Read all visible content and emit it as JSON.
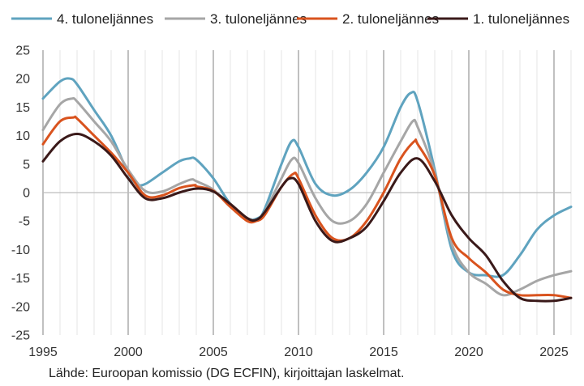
{
  "chart_data": {
    "type": "line",
    "xlim": [
      1995,
      2026
    ],
    "ylim": [
      -25,
      25
    ],
    "yticks": [
      25,
      20,
      15,
      10,
      5,
      0,
      -5,
      -10,
      -15,
      -20,
      -25
    ],
    "xticks": [
      1995,
      2000,
      2005,
      2010,
      2015,
      2020,
      2025
    ],
    "grid": {
      "vertical_major_every": 5,
      "vertical_minor_every": 1,
      "horizontal": false
    },
    "legend_position": "top",
    "series": [
      {
        "name": "4. tuloneljännes",
        "color": "#5fa3bf",
        "x": [
          1995,
          1996,
          1996.6,
          1997,
          1998,
          1999,
          2000,
          2000.5,
          2001,
          2002,
          2003,
          2003.6,
          2004,
          2005,
          2006,
          2007,
          2007.6,
          2008,
          2009,
          2009.6,
          2010,
          2011,
          2012,
          2013,
          2014,
          2015,
          2016,
          2016.6,
          2017,
          2018,
          2019,
          2020,
          2021,
          2022,
          2023,
          2024,
          2025,
          2026
        ],
        "y": [
          16.5,
          19.5,
          20,
          19,
          14.5,
          10,
          3.5,
          1.5,
          1.5,
          3.5,
          5.5,
          6,
          5.8,
          2.5,
          -2,
          -4.5,
          -4.5,
          -3,
          5,
          9,
          8,
          1.5,
          -0.5,
          0.5,
          3.5,
          8,
          15,
          17.5,
          16,
          4,
          -10,
          -14,
          -14.5,
          -14.5,
          -11,
          -6.5,
          -4,
          -2.5
        ]
      },
      {
        "name": "3. tuloneljännes",
        "color": "#a6a6a6",
        "x": [
          1995,
          1996,
          1996.7,
          1997,
          1998,
          1999,
          2000,
          2001,
          2002,
          2003,
          2003.7,
          2004,
          2005,
          2006,
          2007,
          2007.6,
          2008,
          2009,
          2009.6,
          2010,
          2011,
          2012,
          2013,
          2014,
          2015,
          2016,
          2016.7,
          2017,
          2018,
          2019,
          2020,
          2021,
          2022,
          2023,
          2024,
          2025,
          2026
        ],
        "y": [
          11,
          15.5,
          16.5,
          16,
          12.5,
          9,
          4,
          0.3,
          0.2,
          1.5,
          2.3,
          2,
          0.5,
          -2.5,
          -4.5,
          -4.8,
          -3.5,
          2.5,
          5.8,
          5.2,
          -1,
          -5,
          -5,
          -2,
          3.5,
          9,
          12.5,
          11.5,
          3.5,
          -9,
          -14,
          -16,
          -18,
          -17,
          -15.5,
          -14.5,
          -13.8
        ]
      },
      {
        "name": "2. tuloneljännes",
        "color": "#d9531e",
        "x": [
          1995,
          1996,
          1996.8,
          1997,
          1998,
          1999,
          2000,
          2001,
          2002,
          2003,
          2003.9,
          2004,
          2005,
          2006,
          2007,
          2007.5,
          2008,
          2009,
          2009.7,
          2010,
          2011,
          2012,
          2013,
          2014,
          2015,
          2016,
          2016.8,
          2017,
          2018,
          2019,
          2020,
          2021,
          2022,
          2023,
          2024,
          2025,
          2026
        ],
        "y": [
          8.5,
          12.5,
          13.2,
          13,
          10,
          7,
          3.5,
          -0.5,
          -0.5,
          0.8,
          1.3,
          1.1,
          0.3,
          -2.5,
          -5,
          -5,
          -4,
          1,
          3.3,
          2.5,
          -4,
          -8,
          -8,
          -5,
          0,
          6,
          9,
          8.5,
          3,
          -8,
          -11.5,
          -14,
          -17,
          -18,
          -18,
          -18,
          -18.5
        ]
      },
      {
        "name": "1. tuloneljännes",
        "color": "#3a1919",
        "x": [
          1995,
          1996,
          1997,
          1998,
          1999,
          2000,
          2001,
          2002,
          2003,
          2004,
          2005,
          2006,
          2007,
          2007.5,
          2008,
          2009,
          2009.5,
          2010,
          2011,
          2012,
          2013,
          2014,
          2015,
          2016,
          2017,
          2018,
          2019,
          2020,
          2021,
          2022,
          2023,
          2024,
          2025,
          2026
        ],
        "y": [
          5.5,
          9,
          10.3,
          9,
          6.5,
          2.5,
          -1,
          -1,
          0,
          0.7,
          0.2,
          -2,
          -4.5,
          -4.8,
          -3.5,
          1,
          2.5,
          1.5,
          -5,
          -8.5,
          -8,
          -6,
          -1.5,
          3.5,
          6,
          2,
          -4,
          -8,
          -11,
          -15.5,
          -18.5,
          -19,
          -19,
          -18.5
        ]
      }
    ]
  },
  "source_text": "Lähde: Euroopan komissio (DG ECFIN), kirjoittajan laskelmat."
}
